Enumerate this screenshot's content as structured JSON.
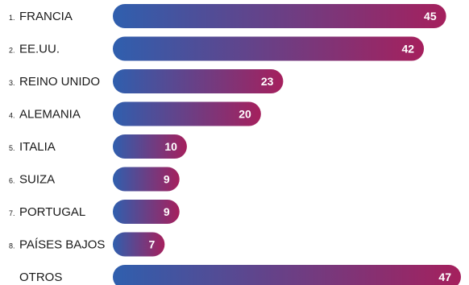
{
  "chart_data": {
    "type": "bar",
    "orientation": "horizontal",
    "categories": [
      {
        "rank": "1.",
        "name": "FRANCIA"
      },
      {
        "rank": "2.",
        "name": "EE.UU."
      },
      {
        "rank": "3.",
        "name": "REINO UNIDO"
      },
      {
        "rank": "4.",
        "name": "ALEMANIA"
      },
      {
        "rank": "5.",
        "name": "ITALIA"
      },
      {
        "rank": "6.",
        "name": "SUIZA"
      },
      {
        "rank": "7.",
        "name": "PORTUGAL"
      },
      {
        "rank": "8.",
        "name": "PAÍSES BAJOS"
      },
      {
        "rank": "",
        "name": "OTROS"
      }
    ],
    "values": [
      45,
      42,
      23,
      20,
      10,
      9,
      9,
      7,
      47
    ],
    "title": "",
    "xlabel": "",
    "ylabel": "",
    "xlim": [
      0,
      47
    ],
    "grid": false,
    "legend": "none",
    "colors": {
      "gradient_start": "#2f5fae",
      "gradient_end": "#a5205d",
      "text": "#1a1a1a",
      "value_text": "#ffffff"
    }
  }
}
